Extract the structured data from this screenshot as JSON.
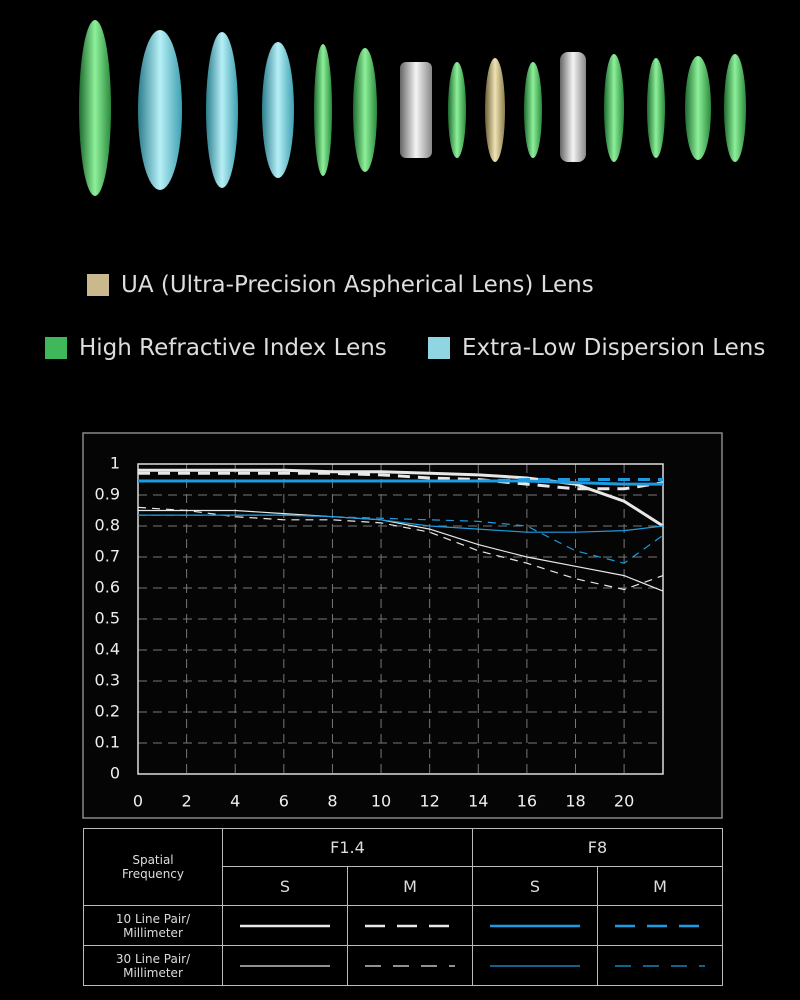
{
  "legend": [
    {
      "label": "UA (Ultra-Precision Aspherical Lens) Lens",
      "color": "#c9b98c"
    },
    {
      "label": "High Refractive Index Lens",
      "color": "#3fb85c"
    },
    {
      "label": "Extra-Low Dispersion Lens",
      "color": "#8fd6e2"
    }
  ],
  "chart_data": {
    "type": "line",
    "x": [
      0,
      2,
      4,
      6,
      8,
      10,
      12,
      14,
      16,
      18,
      20,
      21.6
    ],
    "series": [
      {
        "color": "#e8e8e8",
        "dash": false,
        "width": 3,
        "values": [
          0.98,
          0.98,
          0.98,
          0.98,
          0.975,
          0.975,
          0.97,
          0.965,
          0.955,
          0.935,
          0.88,
          0.8
        ]
      },
      {
        "color": "#e8e8e8",
        "dash": true,
        "width": 3,
        "values": [
          0.97,
          0.97,
          0.97,
          0.97,
          0.97,
          0.965,
          0.955,
          0.95,
          0.935,
          0.92,
          0.92,
          0.94
        ]
      },
      {
        "color": "#1e9be0",
        "dash": false,
        "width": 3,
        "values": [
          0.945,
          0.945,
          0.945,
          0.945,
          0.945,
          0.945,
          0.945,
          0.945,
          0.945,
          0.94,
          0.935,
          0.935
        ]
      },
      {
        "color": "#1e9be0",
        "dash": true,
        "width": 3,
        "values": [
          0.945,
          0.945,
          0.945,
          0.945,
          0.945,
          0.945,
          0.945,
          0.945,
          0.95,
          0.95,
          0.95,
          0.95
        ]
      },
      {
        "color": "#e8e8e8",
        "dash": false,
        "width": 1.2,
        "values": [
          0.85,
          0.85,
          0.85,
          0.84,
          0.83,
          0.82,
          0.79,
          0.74,
          0.7,
          0.67,
          0.64,
          0.59
        ]
      },
      {
        "color": "#e8e8e8",
        "dash": true,
        "width": 1.2,
        "values": [
          0.86,
          0.85,
          0.83,
          0.82,
          0.82,
          0.81,
          0.78,
          0.72,
          0.68,
          0.63,
          0.595,
          0.64
        ]
      },
      {
        "color": "#1e9be0",
        "dash": false,
        "width": 1.2,
        "values": [
          0.835,
          0.835,
          0.835,
          0.835,
          0.83,
          0.82,
          0.8,
          0.79,
          0.78,
          0.78,
          0.785,
          0.8
        ]
      },
      {
        "color": "#1e9be0",
        "dash": true,
        "width": 1.2,
        "values": [
          0.835,
          0.835,
          0.835,
          0.835,
          0.83,
          0.825,
          0.82,
          0.815,
          0.8,
          0.72,
          0.68,
          0.77
        ]
      }
    ],
    "xlim": [
      0,
      21.6
    ],
    "ylim": [
      0,
      1
    ],
    "xticks": [
      0,
      2,
      4,
      6,
      8,
      10,
      12,
      14,
      16,
      18,
      20
    ],
    "yticks": [
      0,
      0.1,
      0.2,
      0.3,
      0.4,
      0.5,
      0.6,
      0.7,
      0.8,
      0.9,
      1
    ],
    "grid": true
  },
  "table": {
    "header": "Spatial Frequency",
    "apertures": [
      "F1.4",
      "F8"
    ],
    "directions": [
      "S",
      "M",
      "S",
      "M"
    ],
    "rows": [
      "10 Line Pair/ Millimeter",
      "30 Line Pair/ Millimeter"
    ]
  }
}
